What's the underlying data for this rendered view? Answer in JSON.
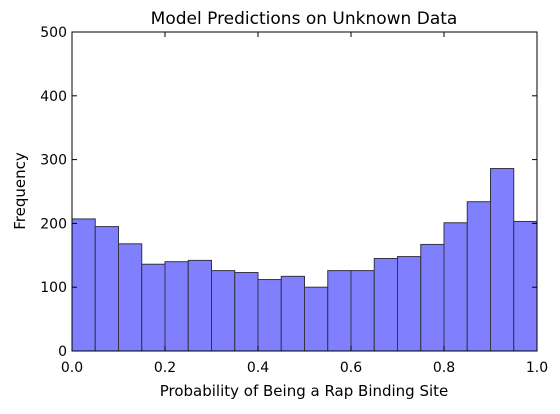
{
  "chart_data": {
    "type": "bar",
    "title": "Model Predictions on Unknown Data",
    "xlabel": "Probability of Being a Rap Binding Site",
    "ylabel": "Frequency",
    "xlim": [
      0.0,
      1.0
    ],
    "ylim": [
      0,
      500
    ],
    "xticks": [
      "0.0",
      "0.2",
      "0.4",
      "0.6",
      "0.8",
      "1.0"
    ],
    "yticks": [
      "0",
      "100",
      "200",
      "300",
      "400",
      "500"
    ],
    "bin_edges": [
      0.0,
      0.05,
      0.1,
      0.15,
      0.2,
      0.25,
      0.3,
      0.35,
      0.4,
      0.45,
      0.5,
      0.55,
      0.6,
      0.65,
      0.7,
      0.75,
      0.8,
      0.85,
      0.9,
      0.95,
      1.0
    ],
    "values": [
      207,
      195,
      168,
      136,
      140,
      142,
      126,
      123,
      112,
      117,
      100,
      126,
      126,
      145,
      148,
      167,
      201,
      234,
      286,
      203
    ],
    "grid": false,
    "bar_color": "#8080ff",
    "edge_color": "#333344"
  }
}
